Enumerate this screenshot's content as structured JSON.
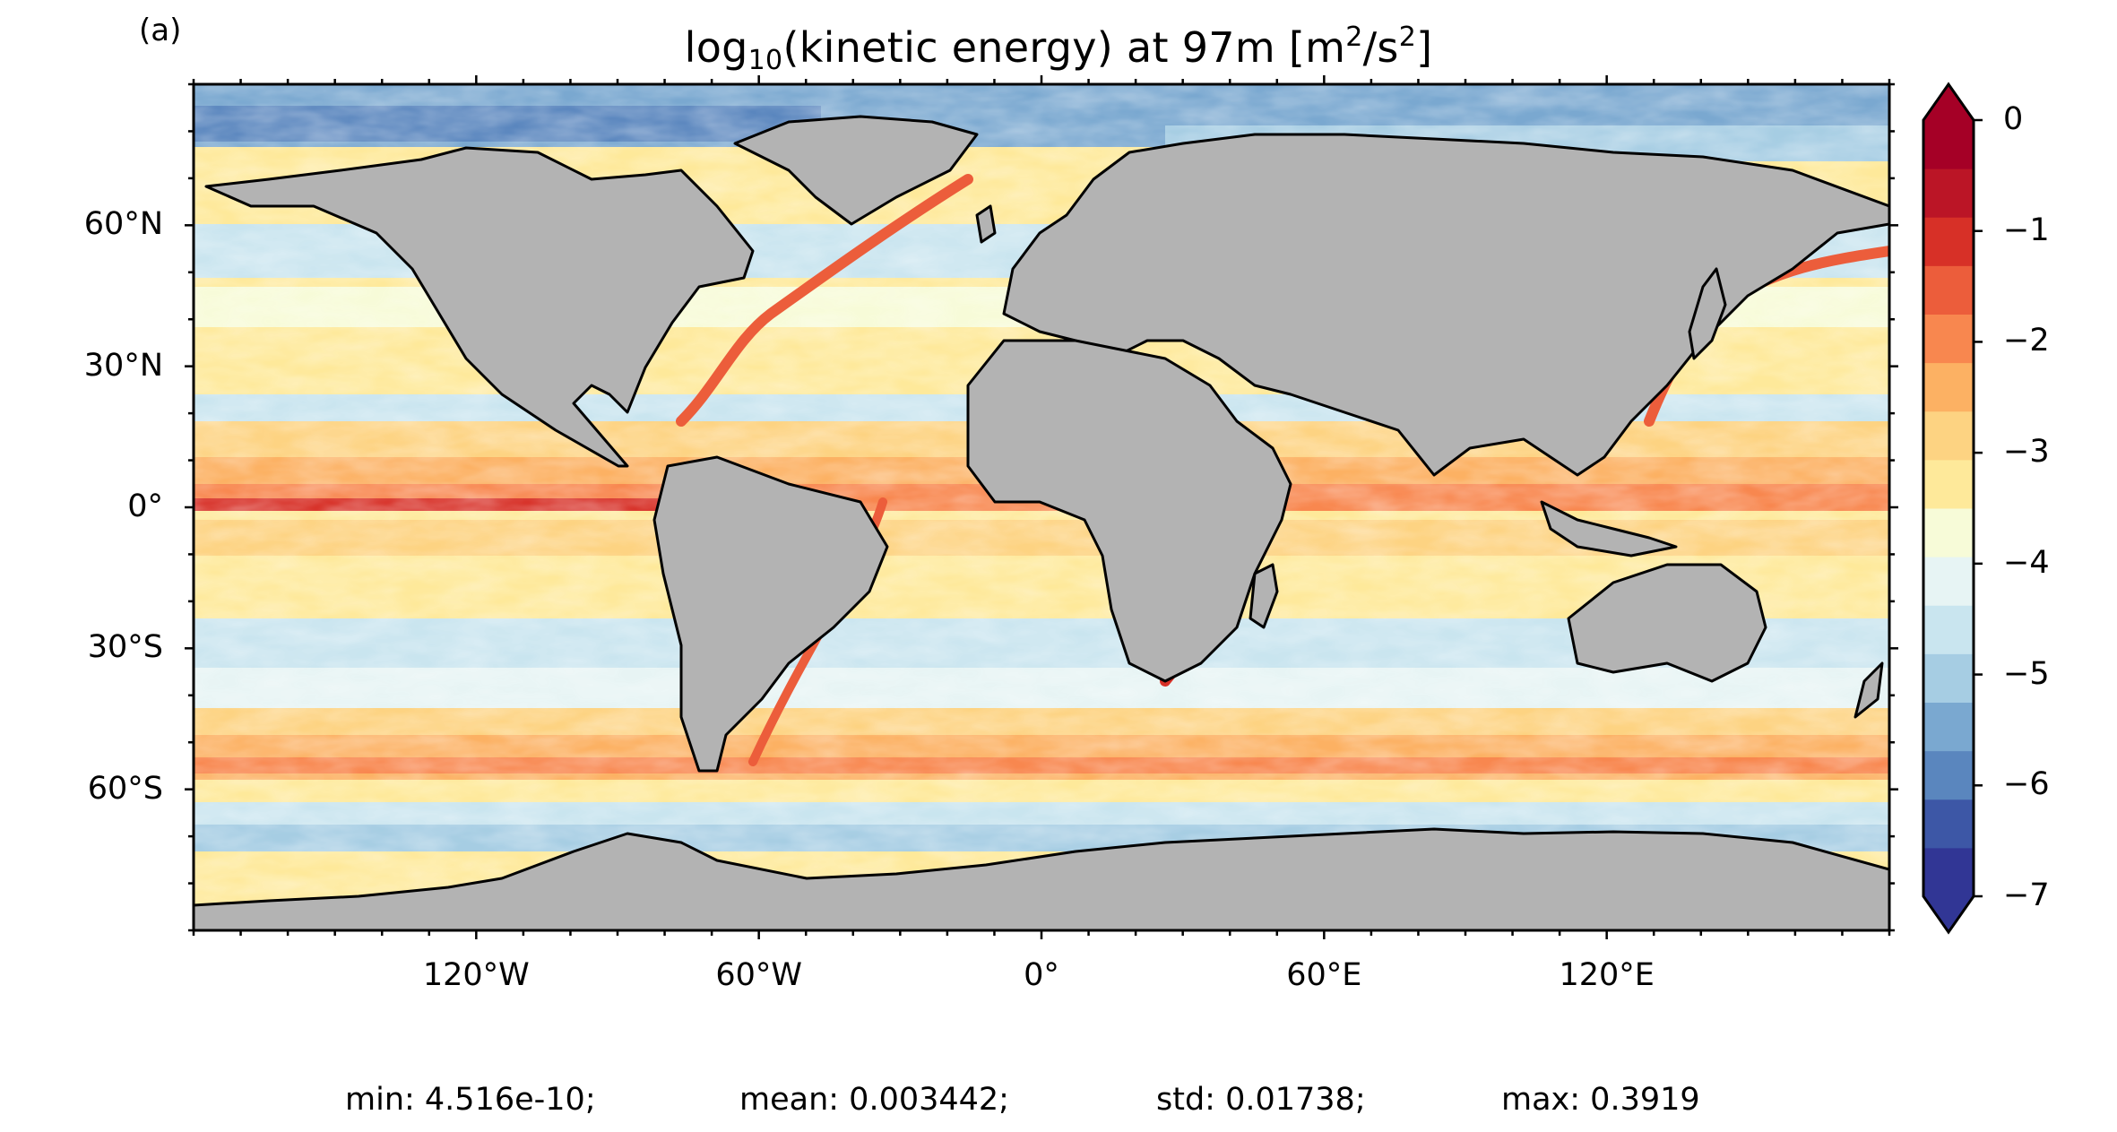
{
  "panel_label": "(a)",
  "title": {
    "prefix": "log",
    "subscript": "10",
    "middle": "(kinetic energy) at 97m [m",
    "sup1": "2",
    "mid2": "/s",
    "sup2": "2",
    "suffix": "]"
  },
  "map": {
    "projection": "PlateCarree",
    "lon_range": [
      -180,
      180
    ],
    "lat_range": [
      -90,
      90
    ],
    "land_color": "#b3b3b3",
    "coastline_color": "#000000",
    "lat_ticks": [
      "60°N",
      "30°N",
      "0°",
      "30°S",
      "60°S"
    ],
    "lat_values": [
      60,
      30,
      0,
      -30,
      -60
    ],
    "lon_ticks": [
      "120°W",
      "60°W",
      "0°",
      "60°E",
      "120°E"
    ],
    "lon_values": [
      -120,
      -60,
      0,
      60,
      120
    ]
  },
  "colorbar": {
    "min": -7,
    "max": 0,
    "levels_per_unit": 2,
    "extend": "both",
    "tick_labels": [
      "0",
      "−1",
      "−2",
      "−3",
      "−4",
      "−5",
      "−6",
      "−7"
    ],
    "tick_values": [
      0,
      -1,
      -2,
      -3,
      -4,
      -5,
      -6,
      -7
    ],
    "colors": [
      "#313695",
      "#3d57a6",
      "#5a86be",
      "#7aa8d0",
      "#a6cde3",
      "#c9e5ef",
      "#e7f4f4",
      "#f7fbd8",
      "#fee99a",
      "#fdd382",
      "#fcb163",
      "#f8874f",
      "#ec5d3b",
      "#d73027",
      "#bb1526",
      "#a50026"
    ]
  },
  "stats": {
    "min": "min: 4.516e-10;",
    "mean": "mean: 0.003442;",
    "std": "std: 0.01738;",
    "max": "max: 0.3919"
  }
}
